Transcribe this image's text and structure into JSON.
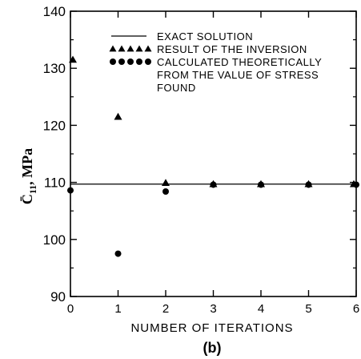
{
  "chart_data": {
    "type": "scatter",
    "xlabel": "NUMBER OF ITERATIONS",
    "ylabel_symbol": "C̄",
    "ylabel_sub": "11",
    "ylabel_unit": ", MPa",
    "panel_label": "(b)",
    "xlim": [
      0,
      6
    ],
    "ylim": [
      90,
      140
    ],
    "x_ticks": [
      0,
      1,
      2,
      3,
      4,
      5,
      6
    ],
    "y_ticks": [
      90,
      100,
      110,
      120,
      130,
      140
    ],
    "legend_position": "top-right",
    "series": [
      {
        "name": "EXACT SOLUTION",
        "kind": "line",
        "y": 109.7
      },
      {
        "name": "RESULT OF THE INVERSION",
        "kind": "triangle",
        "x": [
          0,
          1,
          2,
          3,
          4,
          5,
          6
        ],
        "y": [
          131.5,
          121.5,
          109.9,
          109.7,
          109.7,
          109.7,
          109.7
        ]
      },
      {
        "name_lines": [
          "CALCULATED THEORETICALLY",
          "FROM THE VALUE OF STRESS",
          "FOUND"
        ],
        "kind": "circle",
        "x": [
          0,
          1,
          2,
          3,
          4,
          5,
          6
        ],
        "y": [
          108.6,
          97.5,
          108.4,
          109.6,
          109.6,
          109.6,
          109.6
        ]
      }
    ]
  }
}
